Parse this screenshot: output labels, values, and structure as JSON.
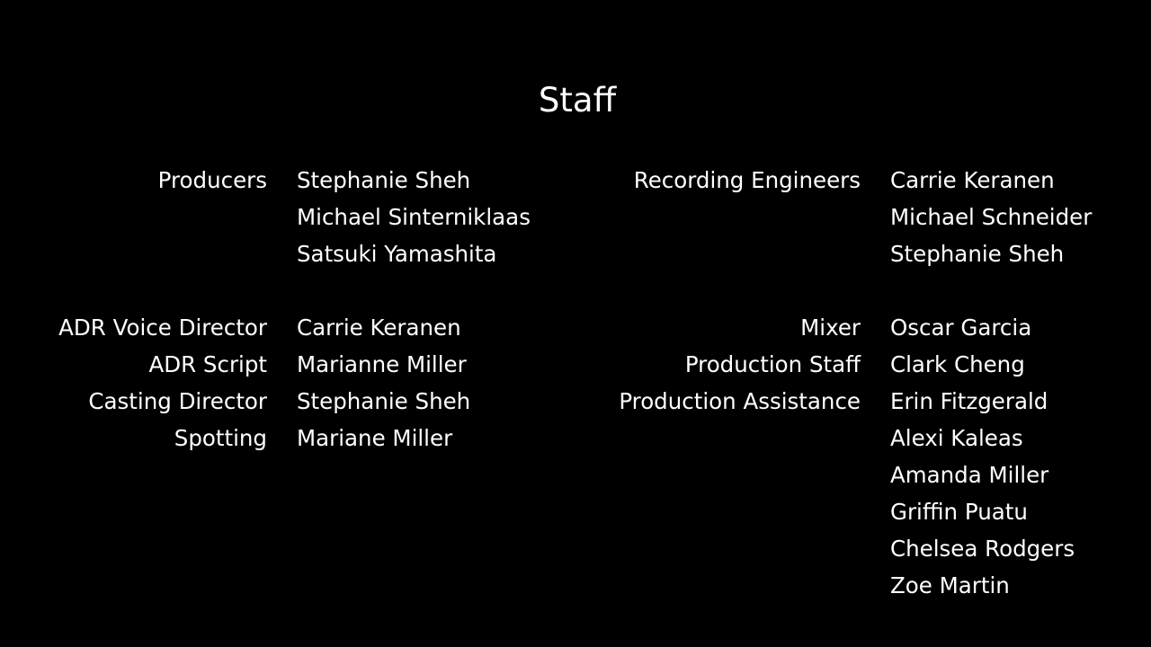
{
  "title": "Staff",
  "columns": [
    {
      "groups": [
        [
          {
            "role": "Producers",
            "names": [
              "Stephanie Sheh",
              "Michael Sinterniklaas",
              "Satsuki Yamashita"
            ]
          }
        ],
        [
          {
            "role": "ADR Voice Director",
            "names": [
              "Carrie Keranen"
            ]
          },
          {
            "role": "ADR Script",
            "names": [
              "Marianne Miller"
            ]
          },
          {
            "role": "Casting Director",
            "names": [
              "Stephanie Sheh"
            ]
          },
          {
            "role": "Spotting",
            "names": [
              "Mariane Miller"
            ]
          }
        ]
      ]
    },
    {
      "groups": [
        [
          {
            "role": "Recording Engineers",
            "names": [
              "Carrie Keranen",
              "Michael Schneider",
              "Stephanie Sheh"
            ]
          }
        ],
        [
          {
            "role": "Mixer",
            "names": [
              "Oscar Garcia"
            ]
          },
          {
            "role": "Production Staff",
            "names": [
              "Clark Cheng"
            ]
          },
          {
            "role": "Production Assistance",
            "names": [
              "Erin Fitzgerald",
              "Alexi Kaleas",
              "Amanda Miller",
              "Griffin Puatu",
              "Chelsea Rodgers",
              "Zoe Martin"
            ]
          }
        ]
      ]
    }
  ]
}
